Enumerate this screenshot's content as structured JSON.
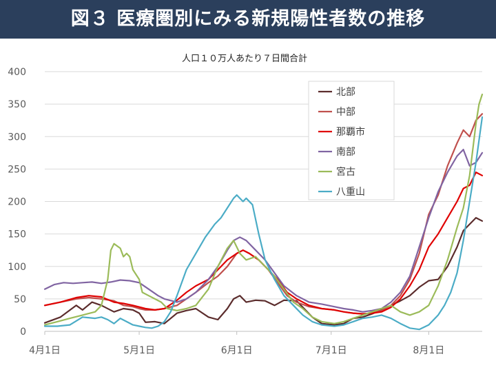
{
  "header": {
    "title": "図３ 医療圏別にみる新規陽性者数の推移"
  },
  "chart_data": {
    "type": "line",
    "subtitle": "人口１０万人あたり７日間合計",
    "xlabel": "",
    "ylabel": "",
    "ylim": [
      0,
      400
    ],
    "y_ticks": [
      0,
      50,
      100,
      150,
      200,
      250,
      300,
      350,
      400
    ],
    "x_ticks": [
      {
        "label": "4月1日",
        "day": 0
      },
      {
        "label": "5月1日",
        "day": 30
      },
      {
        "label": "6月1日",
        "day": 61
      },
      {
        "label": "7月1日",
        "day": 91
      },
      {
        "label": "8月1日",
        "day": 122
      }
    ],
    "x_range": [
      0,
      139
    ],
    "x_unit": "days since 4月1日",
    "grid": "horizontal",
    "legend_position": "top-right",
    "series": [
      {
        "name": "北部",
        "color": "#5b2c2c",
        "points": [
          [
            0,
            13
          ],
          [
            5,
            22
          ],
          [
            10,
            40
          ],
          [
            12,
            33
          ],
          [
            15,
            45
          ],
          [
            18,
            40
          ],
          [
            22,
            30
          ],
          [
            25,
            35
          ],
          [
            28,
            33
          ],
          [
            30,
            28
          ],
          [
            32,
            14
          ],
          [
            35,
            15
          ],
          [
            38,
            12
          ],
          [
            42,
            28
          ],
          [
            45,
            32
          ],
          [
            48,
            35
          ],
          [
            52,
            22
          ],
          [
            55,
            18
          ],
          [
            58,
            35
          ],
          [
            60,
            50
          ],
          [
            62,
            55
          ],
          [
            64,
            45
          ],
          [
            67,
            48
          ],
          [
            70,
            47
          ],
          [
            73,
            40
          ],
          [
            76,
            48
          ],
          [
            80,
            47
          ],
          [
            85,
            22
          ],
          [
            88,
            12
          ],
          [
            92,
            10
          ],
          [
            95,
            12
          ],
          [
            98,
            20
          ],
          [
            101,
            22
          ],
          [
            104,
            27
          ],
          [
            107,
            33
          ],
          [
            110,
            40
          ],
          [
            113,
            47
          ],
          [
            116,
            55
          ],
          [
            119,
            68
          ],
          [
            122,
            78
          ],
          [
            125,
            80
          ],
          [
            128,
            100
          ],
          [
            131,
            130
          ],
          [
            133,
            155
          ],
          [
            135,
            165
          ],
          [
            137,
            175
          ],
          [
            139,
            170
          ]
        ]
      },
      {
        "name": "中部",
        "color": "#c0504d",
        "points": [
          [
            0,
            40
          ],
          [
            5,
            45
          ],
          [
            8,
            48
          ],
          [
            10,
            50
          ],
          [
            14,
            52
          ],
          [
            18,
            50
          ],
          [
            22,
            47
          ],
          [
            25,
            40
          ],
          [
            28,
            38
          ],
          [
            30,
            35
          ],
          [
            32,
            33
          ],
          [
            35,
            33
          ],
          [
            38,
            35
          ],
          [
            42,
            40
          ],
          [
            45,
            50
          ],
          [
            48,
            60
          ],
          [
            52,
            75
          ],
          [
            55,
            85
          ],
          [
            58,
            100
          ],
          [
            61,
            120
          ],
          [
            63,
            125
          ],
          [
            65,
            120
          ],
          [
            68,
            110
          ],
          [
            71,
            95
          ],
          [
            74,
            75
          ],
          [
            77,
            55
          ],
          [
            80,
            45
          ],
          [
            84,
            38
          ],
          [
            88,
            35
          ],
          [
            92,
            33
          ],
          [
            95,
            30
          ],
          [
            98,
            28
          ],
          [
            101,
            27
          ],
          [
            104,
            28
          ],
          [
            107,
            32
          ],
          [
            110,
            40
          ],
          [
            113,
            55
          ],
          [
            116,
            80
          ],
          [
            119,
            120
          ],
          [
            122,
            180
          ],
          [
            125,
            210
          ],
          [
            128,
            255
          ],
          [
            131,
            290
          ],
          [
            133,
            310
          ],
          [
            135,
            300
          ],
          [
            137,
            325
          ],
          [
            139,
            335
          ]
        ]
      },
      {
        "name": "那覇市",
        "color": "#e00000",
        "points": [
          [
            0,
            40
          ],
          [
            5,
            45
          ],
          [
            10,
            52
          ],
          [
            14,
            55
          ],
          [
            18,
            53
          ],
          [
            22,
            45
          ],
          [
            25,
            43
          ],
          [
            28,
            40
          ],
          [
            32,
            35
          ],
          [
            35,
            33
          ],
          [
            38,
            35
          ],
          [
            42,
            48
          ],
          [
            45,
            60
          ],
          [
            48,
            70
          ],
          [
            52,
            80
          ],
          [
            55,
            95
          ],
          [
            58,
            110
          ],
          [
            61,
            120
          ],
          [
            63,
            125
          ],
          [
            65,
            120
          ],
          [
            68,
            110
          ],
          [
            71,
            95
          ],
          [
            74,
            80
          ],
          [
            77,
            60
          ],
          [
            80,
            50
          ],
          [
            84,
            40
          ],
          [
            88,
            35
          ],
          [
            92,
            33
          ],
          [
            95,
            30
          ],
          [
            98,
            28
          ],
          [
            101,
            27
          ],
          [
            104,
            28
          ],
          [
            107,
            30
          ],
          [
            110,
            37
          ],
          [
            113,
            50
          ],
          [
            116,
            70
          ],
          [
            119,
            95
          ],
          [
            122,
            130
          ],
          [
            125,
            150
          ],
          [
            128,
            175
          ],
          [
            131,
            200
          ],
          [
            133,
            220
          ],
          [
            135,
            225
          ],
          [
            137,
            245
          ],
          [
            139,
            240
          ]
        ]
      },
      {
        "name": "南部",
        "color": "#8064a2",
        "points": [
          [
            0,
            65
          ],
          [
            3,
            72
          ],
          [
            6,
            75
          ],
          [
            9,
            74
          ],
          [
            12,
            75
          ],
          [
            15,
            76
          ],
          [
            18,
            74
          ],
          [
            21,
            76
          ],
          [
            24,
            79
          ],
          [
            27,
            78
          ],
          [
            30,
            75
          ],
          [
            33,
            65
          ],
          [
            36,
            55
          ],
          [
            38,
            50
          ],
          [
            42,
            45
          ],
          [
            45,
            50
          ],
          [
            48,
            60
          ],
          [
            52,
            80
          ],
          [
            55,
            100
          ],
          [
            58,
            125
          ],
          [
            60,
            140
          ],
          [
            62,
            145
          ],
          [
            64,
            140
          ],
          [
            67,
            125
          ],
          [
            70,
            110
          ],
          [
            73,
            90
          ],
          [
            76,
            70
          ],
          [
            80,
            55
          ],
          [
            84,
            45
          ],
          [
            88,
            42
          ],
          [
            92,
            38
          ],
          [
            95,
            35
          ],
          [
            98,
            33
          ],
          [
            101,
            30
          ],
          [
            104,
            32
          ],
          [
            107,
            35
          ],
          [
            110,
            45
          ],
          [
            113,
            60
          ],
          [
            116,
            85
          ],
          [
            119,
            130
          ],
          [
            122,
            175
          ],
          [
            125,
            215
          ],
          [
            128,
            245
          ],
          [
            131,
            270
          ],
          [
            133,
            280
          ],
          [
            135,
            255
          ],
          [
            137,
            260
          ],
          [
            139,
            275
          ]
        ]
      },
      {
        "name": "宮古",
        "color": "#9bbb59",
        "points": [
          [
            0,
            10
          ],
          [
            4,
            15
          ],
          [
            8,
            20
          ],
          [
            12,
            25
          ],
          [
            16,
            30
          ],
          [
            18,
            40
          ],
          [
            20,
            80
          ],
          [
            21,
            125
          ],
          [
            22,
            135
          ],
          [
            24,
            128
          ],
          [
            25,
            115
          ],
          [
            26,
            120
          ],
          [
            27,
            115
          ],
          [
            28,
            95
          ],
          [
            30,
            80
          ],
          [
            31,
            60
          ],
          [
            33,
            55
          ],
          [
            35,
            50
          ],
          [
            37,
            45
          ],
          [
            39,
            35
          ],
          [
            42,
            32
          ],
          [
            45,
            35
          ],
          [
            48,
            40
          ],
          [
            52,
            65
          ],
          [
            55,
            100
          ],
          [
            58,
            128
          ],
          [
            60,
            140
          ],
          [
            62,
            120
          ],
          [
            64,
            110
          ],
          [
            67,
            115
          ],
          [
            70,
            100
          ],
          [
            73,
            85
          ],
          [
            76,
            65
          ],
          [
            79,
            45
          ],
          [
            82,
            35
          ],
          [
            85,
            22
          ],
          [
            88,
            15
          ],
          [
            92,
            12
          ],
          [
            95,
            15
          ],
          [
            98,
            20
          ],
          [
            101,
            25
          ],
          [
            104,
            30
          ],
          [
            107,
            35
          ],
          [
            110,
            40
          ],
          [
            113,
            30
          ],
          [
            116,
            25
          ],
          [
            119,
            30
          ],
          [
            122,
            40
          ],
          [
            125,
            70
          ],
          [
            128,
            110
          ],
          [
            131,
            160
          ],
          [
            133,
            190
          ],
          [
            135,
            240
          ],
          [
            137,
            320
          ],
          [
            138,
            350
          ],
          [
            139,
            365
          ]
        ]
      },
      {
        "name": "八重山",
        "color": "#4bacc6",
        "points": [
          [
            0,
            8
          ],
          [
            4,
            8
          ],
          [
            8,
            10
          ],
          [
            12,
            22
          ],
          [
            16,
            20
          ],
          [
            18,
            22
          ],
          [
            20,
            18
          ],
          [
            22,
            12
          ],
          [
            24,
            20
          ],
          [
            26,
            15
          ],
          [
            28,
            10
          ],
          [
            30,
            8
          ],
          [
            32,
            6
          ],
          [
            34,
            5
          ],
          [
            36,
            8
          ],
          [
            38,
            15
          ],
          [
            40,
            30
          ],
          [
            42,
            55
          ],
          [
            45,
            95
          ],
          [
            48,
            120
          ],
          [
            51,
            145
          ],
          [
            54,
            165
          ],
          [
            56,
            175
          ],
          [
            58,
            190
          ],
          [
            60,
            205
          ],
          [
            61,
            210
          ],
          [
            63,
            200
          ],
          [
            64,
            205
          ],
          [
            66,
            195
          ],
          [
            68,
            150
          ],
          [
            70,
            110
          ],
          [
            73,
            80
          ],
          [
            76,
            55
          ],
          [
            79,
            40
          ],
          [
            82,
            25
          ],
          [
            85,
            15
          ],
          [
            88,
            10
          ],
          [
            92,
            8
          ],
          [
            95,
            10
          ],
          [
            98,
            15
          ],
          [
            101,
            20
          ],
          [
            104,
            22
          ],
          [
            107,
            25
          ],
          [
            110,
            20
          ],
          [
            113,
            12
          ],
          [
            116,
            5
          ],
          [
            119,
            3
          ],
          [
            122,
            10
          ],
          [
            125,
            25
          ],
          [
            127,
            40
          ],
          [
            129,
            60
          ],
          [
            131,
            90
          ],
          [
            133,
            140
          ],
          [
            135,
            200
          ],
          [
            137,
            260
          ],
          [
            139,
            330
          ]
        ]
      }
    ]
  }
}
